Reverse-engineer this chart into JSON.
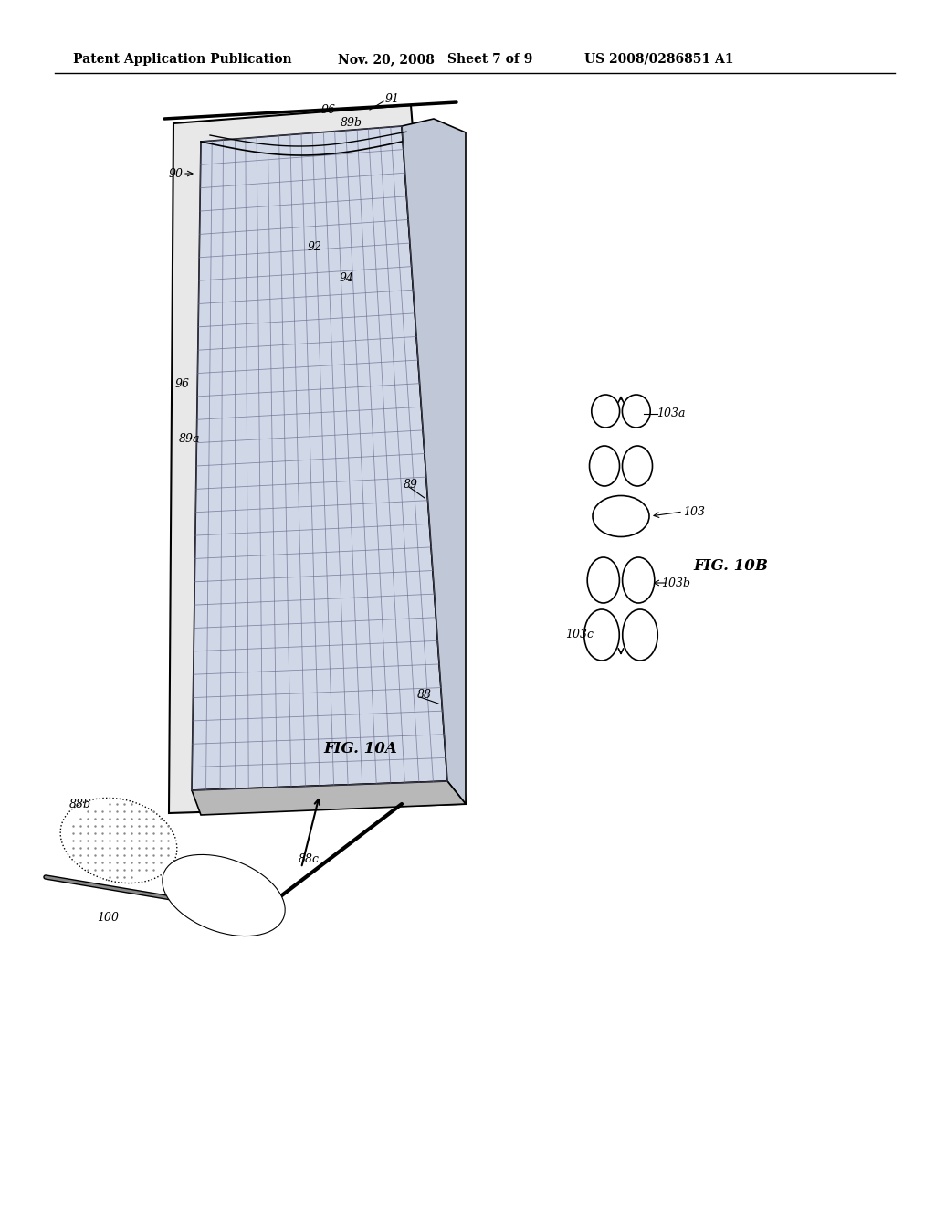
{
  "bg_color": "#ffffff",
  "header_text": "Patent Application Publication",
  "header_date": "Nov. 20, 2008",
  "header_sheet": "Sheet 7 of 9",
  "header_patent": "US 2008/0286851 A1",
  "fig_label_10A": "FIG. 10A",
  "fig_label_10B": "FIG. 10B",
  "labels": {
    "88": "88",
    "88b": "88b",
    "88c": "88c",
    "89": "89",
    "89a": "89a",
    "89b": "89b",
    "90": "90",
    "91": "91",
    "92": "92",
    "94": "94",
    "96": "96",
    "100": "100",
    "103": "103",
    "103a": "103a",
    "103b": "103b",
    "103c": "103c"
  }
}
